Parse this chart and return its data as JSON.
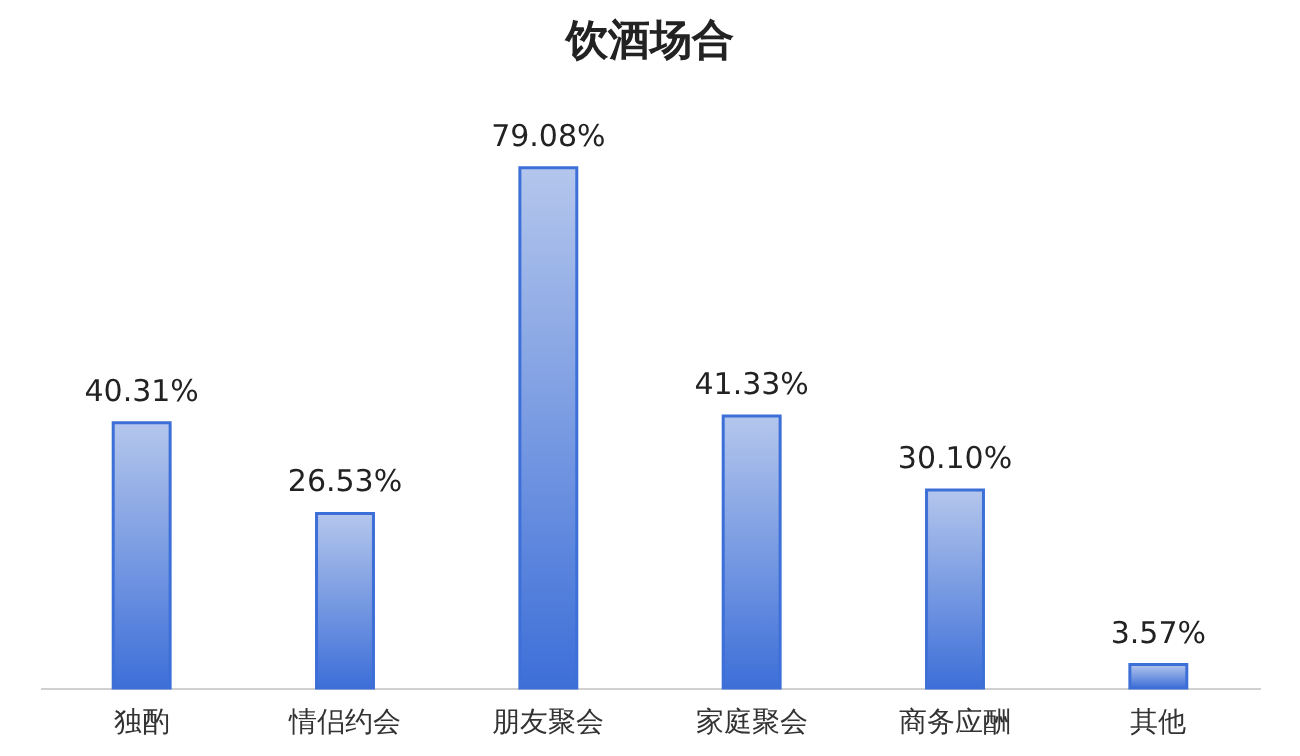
{
  "chart_data": {
    "type": "bar",
    "title": "饮酒场合",
    "categories": [
      "独酌",
      "情侣约会",
      "朋友聚会",
      "家庭聚会",
      "商务应酬",
      "其他"
    ],
    "values": [
      40.31,
      26.53,
      79.08,
      41.33,
      30.1,
      3.57
    ],
    "value_labels": [
      "40.31%",
      "26.53%",
      "79.08%",
      "41.33%",
      "30.10%",
      "3.57%"
    ],
    "color": "#3d6fd8",
    "tick_labels": "x"
  }
}
